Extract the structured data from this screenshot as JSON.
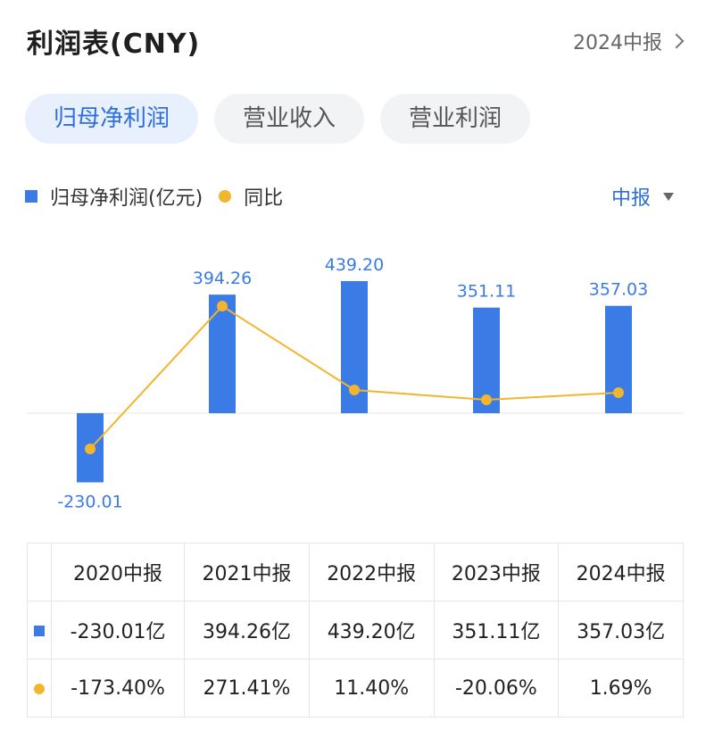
{
  "header": {
    "title": "利润表(CNY)",
    "period_selector": "2024中报"
  },
  "tabs": [
    {
      "label": "归母净利润",
      "active": true
    },
    {
      "label": "营业收入",
      "active": false
    },
    {
      "label": "营业利润",
      "active": false
    }
  ],
  "legend": {
    "bar_label": "归母净利润(亿元)",
    "line_label": "同比",
    "frequency_selector": "中报"
  },
  "colors": {
    "bar": "#3b7be6",
    "line": "#f3b42e",
    "positive": "#e3463c",
    "negative": "#2e9b5a",
    "accent": "#2c6fdd"
  },
  "chart_data": {
    "type": "bar",
    "categories": [
      "2020中报",
      "2021中报",
      "2022中报",
      "2023中报",
      "2024中报"
    ],
    "series": [
      {
        "name": "归母净利润(亿元)",
        "type": "bar",
        "values": [
          -230.01,
          394.26,
          439.2,
          351.11,
          357.03
        ],
        "labels": [
          "-230.01",
          "394.26",
          "439.20",
          "351.11",
          "357.03"
        ]
      },
      {
        "name": "同比",
        "type": "line",
        "values": [
          -173.4,
          271.41,
          11.4,
          -20.06,
          1.69
        ]
      }
    ],
    "legend_position": "top-left",
    "grid": false
  },
  "table": {
    "headers": [
      "2020中报",
      "2021中报",
      "2022中报",
      "2023中报",
      "2024中报"
    ],
    "profit_row": [
      "-230.01亿",
      "394.26亿",
      "439.20亿",
      "351.11亿",
      "357.03亿"
    ],
    "yoy_row": [
      "-173.40%",
      "271.41%",
      "11.40%",
      "-20.06%",
      "1.69%"
    ]
  }
}
